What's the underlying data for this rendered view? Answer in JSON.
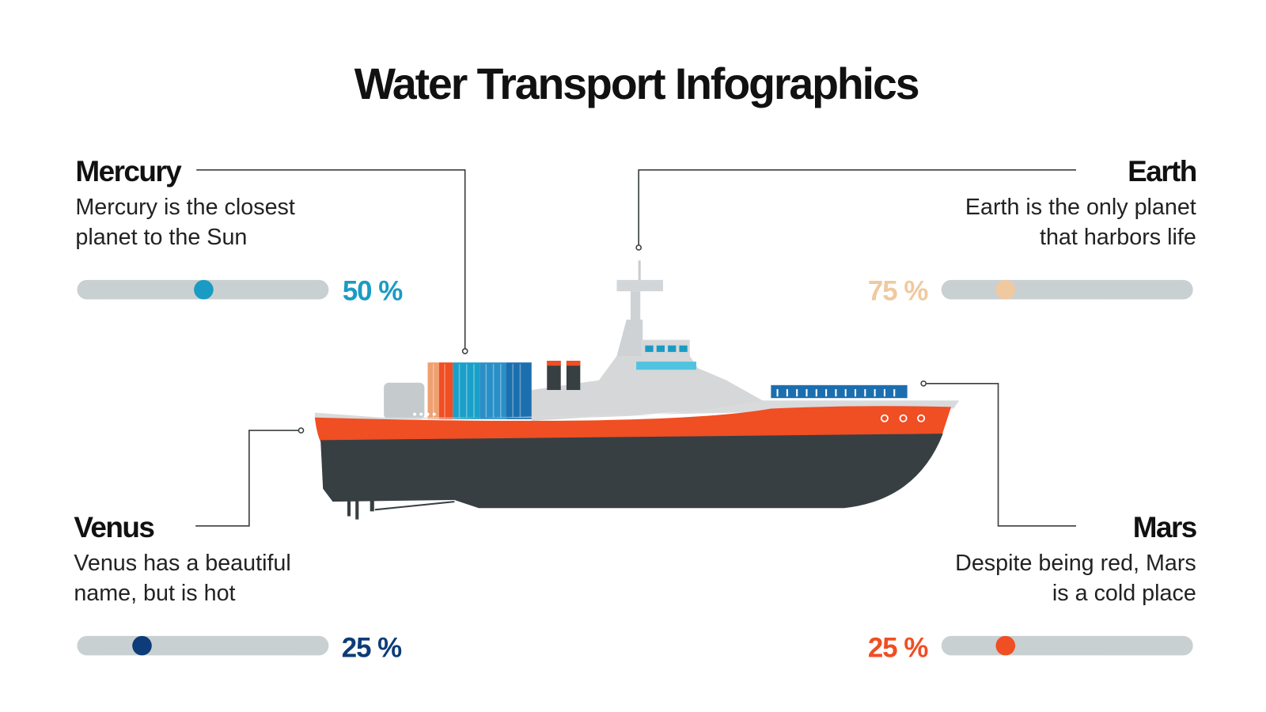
{
  "title": "Water Transport Infographics",
  "items": [
    {
      "name": "Mercury",
      "text": [
        "Mercury is the closest",
        "planet to the Sun"
      ],
      "percent": "50 %"
    },
    {
      "name": "Earth",
      "text": [
        "Earth is the only planet",
        "that harbors life"
      ],
      "percent": "75 %"
    },
    {
      "name": "Venus",
      "text": [
        "Venus has a beautiful",
        "name, but is hot"
      ],
      "percent": "25 %"
    },
    {
      "name": "Mars",
      "text": [
        "Despite being red, Mars",
        "is a cold place"
      ],
      "percent": "25 %"
    }
  ]
}
